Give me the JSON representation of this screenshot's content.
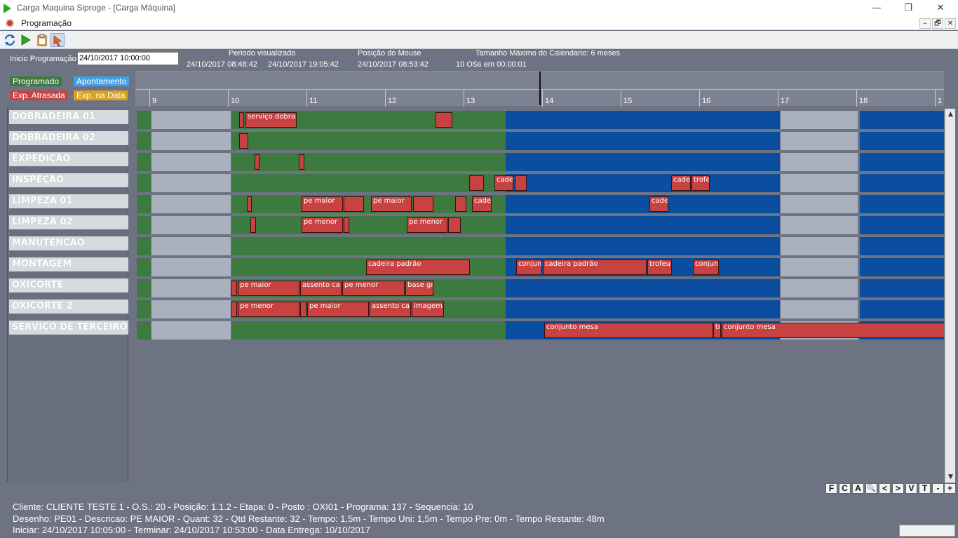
{
  "window": {
    "title": "Carga Maquina Siproge - [Carga Máquina]",
    "min": "—",
    "max": "❐",
    "close": "✕"
  },
  "menu": {
    "label": "Programação",
    "mdi_min": "–",
    "mdi_restore": "🗗",
    "mdi_close": "✕"
  },
  "header": {
    "inicio_label": "Inicio Programação:",
    "inicio_value": "24/10/2017 10:00:00",
    "periodo_label": "Periodo visualizado",
    "periodo_start": "24/10/2017 08:48:42",
    "periodo_end": "24/10/2017 19:05:42",
    "mouse_label": "Posição do Mouse",
    "mouse_value": "24/10/2017 08:53:42",
    "tamanho_label": "Tamanho Máximo do Calendario: 6 meses",
    "oss": "10 OSs em 00:00:01"
  },
  "legend": {
    "programado": "Programado",
    "apontamento": "Apontamento",
    "atrasada": "Exp. Atrasada",
    "na_data": "Exp. na Data"
  },
  "colors": {
    "programado": "#3c7a3f",
    "apontamento": "#3fa1e6",
    "atrasada": "#c94242",
    "na_data": "#d9a21e",
    "future": "#0b4d9e",
    "off": "#aab0bd",
    "task": "#c94242"
  },
  "hours": [
    "9",
    "10",
    "11",
    "12",
    "13",
    "14",
    "15",
    "16",
    "17",
    "18",
    "1"
  ],
  "resources": [
    {
      "name": "DOBRADEIRA 01",
      "tasks": [
        {
          "x": 148,
          "w": 7,
          "label": ""
        },
        {
          "x": 157,
          "w": 73,
          "label": "serviço dobra"
        },
        {
          "x": 428,
          "w": 24,
          "label": ""
        }
      ]
    },
    {
      "name": "DOBRADEIRA 02",
      "tasks": [
        {
          "x": 148,
          "w": 13,
          "label": ""
        }
      ]
    },
    {
      "name": "EXPEDIÇÃO",
      "tasks": [
        {
          "x": 170,
          "w": 7,
          "label": ""
        },
        {
          "x": 233,
          "w": 8,
          "label": ""
        }
      ]
    },
    {
      "name": "INSPEÇÃO",
      "tasks": [
        {
          "x": 476,
          "w": 21,
          "label": ""
        },
        {
          "x": 512,
          "w": 27,
          "label": "cadei"
        },
        {
          "x": 541,
          "w": 17,
          "label": ""
        },
        {
          "x": 764,
          "w": 28,
          "label": "cadei"
        },
        {
          "x": 793,
          "w": 26,
          "label": "trofe"
        }
      ]
    },
    {
      "name": "LIMPEZA 01",
      "tasks": [
        {
          "x": 159,
          "w": 7,
          "label": ""
        },
        {
          "x": 237,
          "w": 59,
          "label": "pe maior"
        },
        {
          "x": 297,
          "w": 29,
          "label": ""
        },
        {
          "x": 336,
          "w": 58,
          "label": "pe maior"
        },
        {
          "x": 396,
          "w": 29,
          "label": ""
        },
        {
          "x": 456,
          "w": 16,
          "label": ""
        },
        {
          "x": 480,
          "w": 28,
          "label": "cadei"
        },
        {
          "x": 733,
          "w": 27,
          "label": "cadei"
        }
      ]
    },
    {
      "name": "LIMPEZA 02",
      "tasks": [
        {
          "x": 164,
          "w": 8,
          "label": ""
        },
        {
          "x": 237,
          "w": 59,
          "label": "pe menor"
        },
        {
          "x": 297,
          "w": 8,
          "label": ""
        },
        {
          "x": 387,
          "w": 58,
          "label": "pe menor"
        },
        {
          "x": 446,
          "w": 18,
          "label": ""
        }
      ]
    },
    {
      "name": "MANUTENCAO",
      "tasks": []
    },
    {
      "name": "MONTAGEM",
      "tasks": [
        {
          "x": 329,
          "w": 148,
          "label": "cadeira padrão"
        },
        {
          "x": 543,
          "w": 37,
          "label": "conjunt"
        },
        {
          "x": 581,
          "w": 148,
          "label": "cadeira padrão"
        },
        {
          "x": 730,
          "w": 35,
          "label": "trofeu"
        },
        {
          "x": 795,
          "w": 37,
          "label": "conjunt"
        }
      ]
    },
    {
      "name": "OXICORTE",
      "tasks": [
        {
          "x": 136,
          "w": 9,
          "label": ""
        },
        {
          "x": 146,
          "w": 88,
          "label": "pe maior"
        },
        {
          "x": 235,
          "w": 59,
          "label": "assento ca"
        },
        {
          "x": 295,
          "w": 89,
          "label": "pe menor"
        },
        {
          "x": 385,
          "w": 40,
          "label": "base gr"
        }
      ]
    },
    {
      "name": "OXICORTE 2",
      "tasks": [
        {
          "x": 136,
          "w": 9,
          "label": ""
        },
        {
          "x": 146,
          "w": 88,
          "label": "pe menor"
        },
        {
          "x": 235,
          "w": 9,
          "label": ""
        },
        {
          "x": 245,
          "w": 88,
          "label": "pe maior"
        },
        {
          "x": 334,
          "w": 59,
          "label": "assento ca"
        },
        {
          "x": 394,
          "w": 46,
          "label": "imagem t"
        }
      ]
    },
    {
      "name": "SERVIÇO DE TERCEIROS",
      "tasks": [
        {
          "x": 583,
          "w": 241,
          "label": "conjunto mesa"
        },
        {
          "x": 824,
          "w": 11,
          "label": "tr"
        },
        {
          "x": 836,
          "w": 320,
          "label": "conjunto mesa"
        }
      ]
    }
  ],
  "nav": [
    "F",
    "C",
    "A",
    "🔍",
    "<",
    ">",
    "V",
    "T",
    "-",
    "+"
  ],
  "footer": {
    "line1": "Cliente: CLIENTE TESTE 1 - O.S.: 20 - Posição: 1.1.2 - Etapa: 0 - Posto : OXI01 - Programa: 137 - Sequencia: 10",
    "line2": "Desenho: PE01 - Descricao: PE MAIOR - Quant: 32 - Qtd Restante: 32 - Tempo: 1,5m - Tempo Uni: 1,5m - Tempo Pre: 0m - Tempo Restante: 48m",
    "line3": "Iniciar: 24/10/2017 10:05:00 - Terminar: 24/10/2017 10:53:00 - Data Entrega: 10/10/2017"
  }
}
